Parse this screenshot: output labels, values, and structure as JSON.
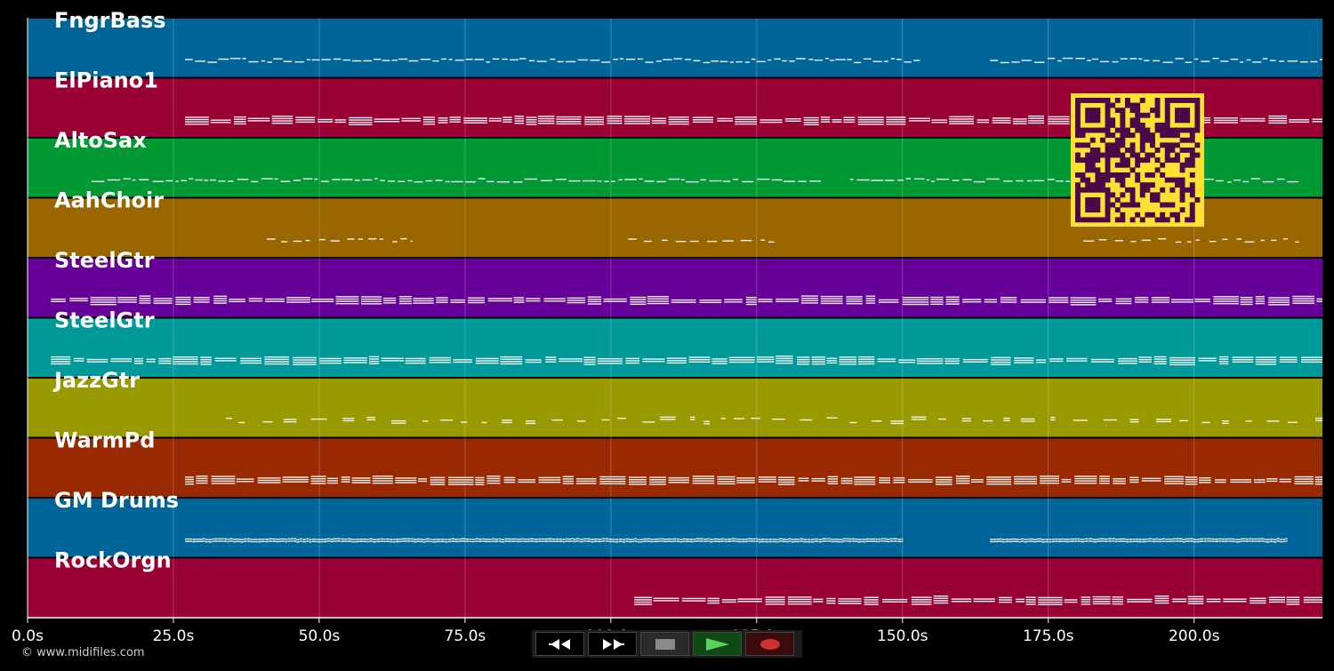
{
  "chart_data": {
    "type": "piano-roll",
    "xlabel": "",
    "x_ticks": [
      "0.0s",
      "25.0s",
      "50.0s",
      "75.0s",
      "100.0s",
      "125.0s",
      "150.0s",
      "175.0s",
      "200.0s"
    ],
    "x_range": [
      0,
      222
    ],
    "tracks": [
      {
        "name": "FngrBass",
        "color": "#006699",
        "segments": [
          [
            27,
            153
          ],
          [
            165,
            222
          ]
        ],
        "style": "bass"
      },
      {
        "name": "ElPiano1",
        "color": "#990033",
        "segments": [
          [
            27,
            222
          ]
        ],
        "style": "chords"
      },
      {
        "name": "AltoSax",
        "color": "#009933",
        "segments": [
          [
            11,
            136
          ],
          [
            141,
            218
          ]
        ],
        "style": "melody"
      },
      {
        "name": "AahChoir",
        "color": "#996600",
        "segments": [
          [
            41,
            66
          ],
          [
            103,
            128
          ],
          [
            181,
            218
          ]
        ],
        "style": "sparse"
      },
      {
        "name": "SteelGtr",
        "color": "#660099",
        "segments": [
          [
            4,
            222
          ]
        ],
        "style": "chords"
      },
      {
        "name": "SteelGtr",
        "color": "#009999",
        "segments": [
          [
            4,
            222
          ]
        ],
        "style": "chords"
      },
      {
        "name": "JazzGtr",
        "color": "#999900",
        "segments": [
          [
            34,
            222
          ]
        ],
        "style": "scattered"
      },
      {
        "name": "WarmPd",
        "color": "#992900",
        "segments": [
          [
            27,
            222
          ]
        ],
        "style": "chords"
      },
      {
        "name": "GM Drums",
        "color": "#006699",
        "segments": [
          [
            27,
            150
          ],
          [
            165,
            216
          ]
        ],
        "style": "drums"
      },
      {
        "name": "RockOrgn",
        "color": "#990033",
        "segments": [
          [
            104,
            222
          ]
        ],
        "style": "chords"
      }
    ]
  },
  "footer": {
    "copyright": "© www.midifiles.com"
  },
  "transport": {
    "buttons": [
      {
        "name": "rewind-button",
        "icon": "rewind-icon"
      },
      {
        "name": "fast-forward-button",
        "icon": "fast-forward-icon"
      },
      {
        "name": "stop-button",
        "icon": "stop-icon"
      },
      {
        "name": "play-button",
        "icon": "play-icon"
      },
      {
        "name": "record-button",
        "icon": "record-icon"
      }
    ]
  },
  "overlay": {
    "qr_code": "qr-code",
    "qr_color": "#ffe033",
    "qr_dark": "#4a0a4a"
  }
}
